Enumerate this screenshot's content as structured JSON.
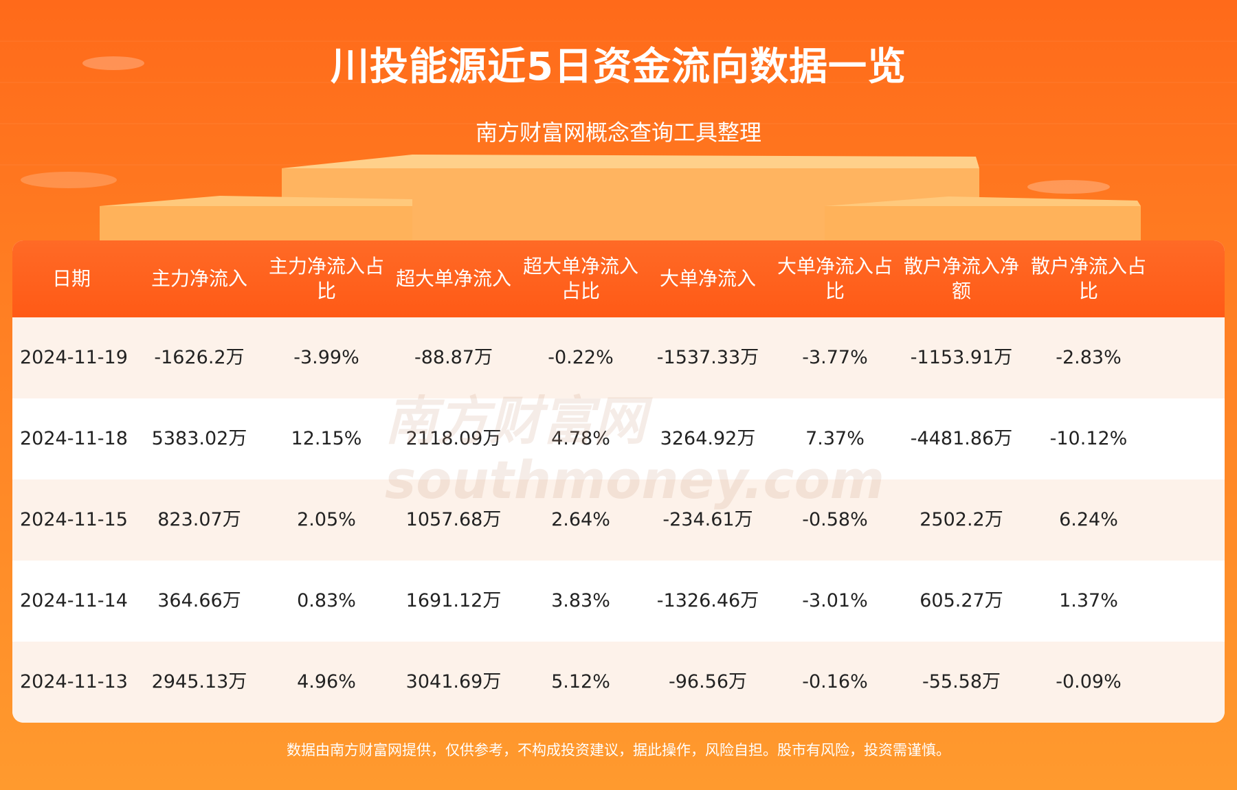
{
  "header": {
    "title": "川投能源近5日资金流向数据一览",
    "subtitle": "南方财富网概念查询工具整理"
  },
  "watermark": {
    "brand": "南方财富网",
    "domain": "southmoney.com"
  },
  "table": {
    "columns": [
      "日期",
      "主力净流入",
      "主力净流入占比",
      "超大单净流入",
      "超大单净流入占比",
      "大单净流入",
      "大单净流入占比",
      "散户净流入净额",
      "散户净流入占比"
    ],
    "rows": [
      [
        "2024-11-19",
        "-1626.2万",
        "-3.99%",
        "-88.87万",
        "-0.22%",
        "-1537.33万",
        "-3.77%",
        "-1153.91万",
        "-2.83%"
      ],
      [
        "2024-11-18",
        "5383.02万",
        "12.15%",
        "2118.09万",
        "4.78%",
        "3264.92万",
        "7.37%",
        "-4481.86万",
        "-10.12%"
      ],
      [
        "2024-11-15",
        "823.07万",
        "2.05%",
        "1057.68万",
        "2.64%",
        "-234.61万",
        "-0.58%",
        "2502.2万",
        "6.24%"
      ],
      [
        "2024-11-14",
        "364.66万",
        "0.83%",
        "1691.12万",
        "3.83%",
        "-1326.46万",
        "-3.01%",
        "605.27万",
        "1.37%"
      ],
      [
        "2024-11-13",
        "2945.13万",
        "4.96%",
        "3041.69万",
        "5.12%",
        "-96.56万",
        "-0.16%",
        "-55.58万",
        "-0.09%"
      ]
    ]
  },
  "footer": {
    "disclaimer": "数据由南方财富网提供，仅供参考，不构成投资建议，据此操作，风险自担。股市有风险，投资需谨慎。"
  }
}
